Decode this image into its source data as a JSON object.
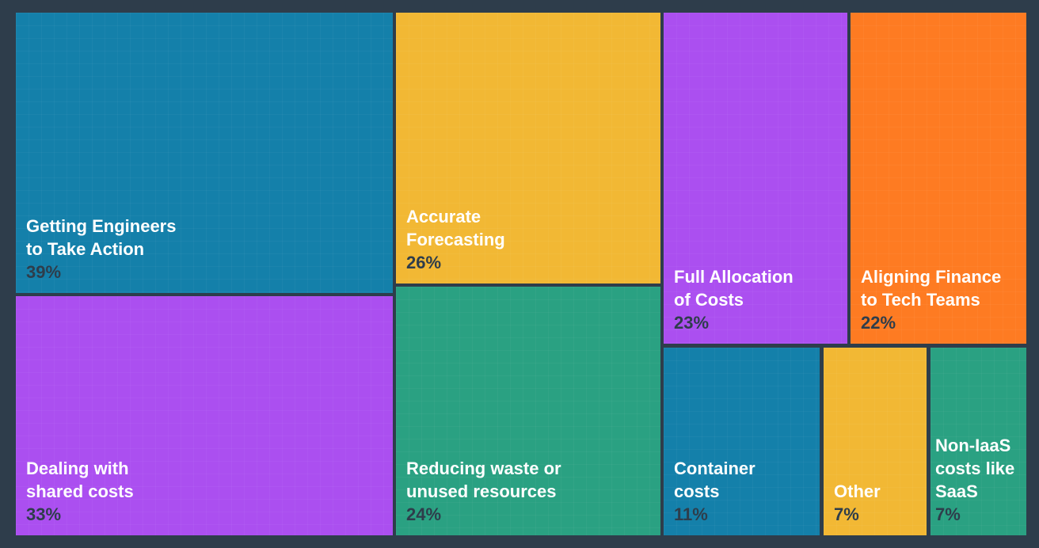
{
  "chart_data": {
    "type": "treemap",
    "title": "",
    "items": [
      {
        "label": "Getting Engineers\nto Take Action",
        "value": 39,
        "display": "39%",
        "color": "#1480aa"
      },
      {
        "label": "Dealing with\nshared costs",
        "value": 33,
        "display": "33%",
        "color": "#ab4ff0"
      },
      {
        "label": "Accurate\nForecasting",
        "value": 26,
        "display": "26%",
        "color": "#f2b834"
      },
      {
        "label": "Reducing waste or\nunused resources",
        "value": 24,
        "display": "24%",
        "color": "#2aa182"
      },
      {
        "label": "Full Allocation\nof Costs",
        "value": 23,
        "display": "23%",
        "color": "#ab4ff0"
      },
      {
        "label": "Aligning Finance\nto Tech Teams",
        "value": 22,
        "display": "22%",
        "color": "#fe7b22"
      },
      {
        "label": "Container\ncosts",
        "value": 11,
        "display": "11%",
        "color": "#1480aa"
      },
      {
        "label": "Other",
        "value": 7,
        "display": "7%",
        "color": "#f2b834"
      },
      {
        "label": "Non-IaaS\ncosts like\nSaaS",
        "value": 7,
        "display": "7%",
        "color": "#2aa182"
      }
    ]
  }
}
